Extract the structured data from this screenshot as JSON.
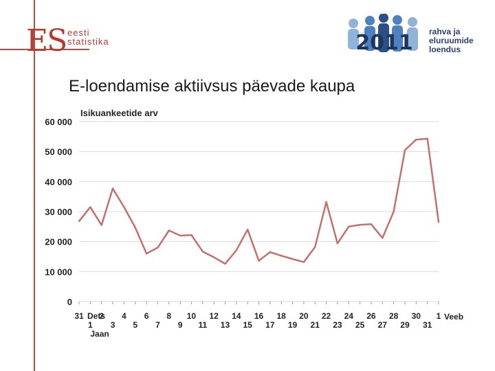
{
  "header": {
    "logo_left_monogram": "ES",
    "logo_left_line1": "eesti",
    "logo_left_line2": "statistika",
    "logo_right_year": "2011",
    "logo_right_line1": "rahva ja",
    "logo_right_line2": "eluruumide",
    "logo_right_line3": "loendus"
  },
  "colors": {
    "accent": "#a8514a",
    "line": "#c4706a",
    "grid": "#d9d9d9",
    "logo_blue": "#2c3e6e"
  },
  "chart_data": {
    "type": "line",
    "title": "E-loendamise aktiivsus päevade kaupa",
    "ylabel": "Isikuankeetide arv",
    "ylim": [
      0,
      60000
    ],
    "y_ticks": [
      0,
      10000,
      20000,
      30000,
      40000,
      50000,
      60000
    ],
    "y_tick_labels": [
      "0",
      "10 000",
      "20 000",
      "30 000",
      "40 000",
      "50 000",
      "60 000"
    ],
    "grid": true,
    "x_tick_labels_row1": [
      "31",
      "Dets",
      "2",
      "4",
      "6",
      "8",
      "10",
      "12",
      "14",
      "16",
      "18",
      "20",
      "22",
      "24",
      "26",
      "28",
      "30",
      "1"
    ],
    "x_tick_labels_row2": [
      "1",
      "3",
      "5",
      "7",
      "9",
      "11",
      "13",
      "15",
      "17",
      "19",
      "21",
      "23",
      "25",
      "27",
      "29",
      "31"
    ],
    "x_tick_extra": "Veeb",
    "x_tick_month2": "Jaan",
    "x": [
      "31",
      "1",
      "2",
      "3",
      "4",
      "5",
      "6",
      "7",
      "8",
      "9",
      "10",
      "11",
      "12",
      "13",
      "14",
      "15",
      "16",
      "17",
      "18",
      "19",
      "20",
      "21",
      "22",
      "23",
      "24",
      "25",
      "26",
      "27",
      "28",
      "29",
      "30",
      "31",
      "1"
    ],
    "series": [
      {
        "values": [
          26800,
          31500,
          25500,
          37700,
          31500,
          24700,
          16000,
          18000,
          23700,
          22000,
          22200,
          16700,
          14800,
          12600,
          17100,
          24000,
          13600,
          16500,
          15300,
          14200,
          13200,
          18200,
          33200,
          19400,
          25000,
          25600,
          25800,
          21200,
          30000,
          50500,
          54000,
          54300,
          26500
        ]
      }
    ]
  }
}
